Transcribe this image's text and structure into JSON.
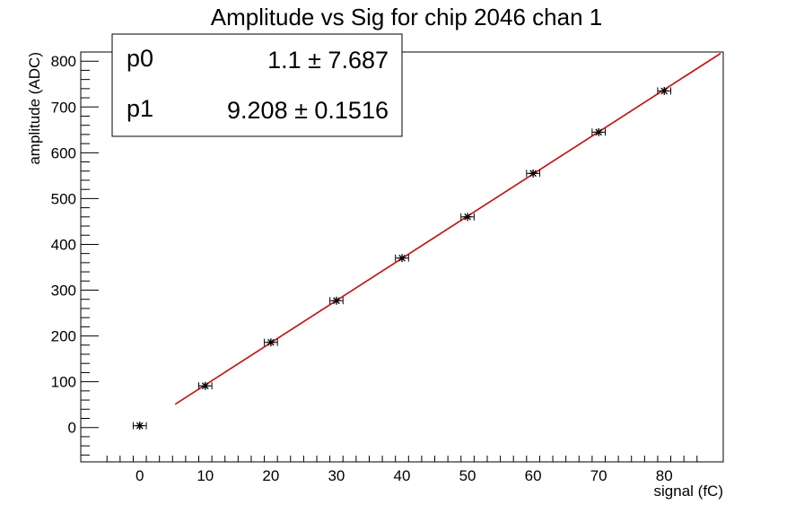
{
  "chart_data": {
    "type": "scatter",
    "title": "Amplitude vs Sig for chip 2046 chan 1",
    "xlabel": "signal (fC)",
    "ylabel": "amplitude (ADC)",
    "xlim": [
      -9,
      89
    ],
    "ylim": [
      -75,
      820
    ],
    "x_ticks": [
      0,
      10,
      20,
      30,
      40,
      50,
      60,
      70,
      80
    ],
    "y_ticks": [
      0,
      100,
      200,
      300,
      400,
      500,
      600,
      700,
      800
    ],
    "grid": false,
    "series": [
      {
        "marker": "star",
        "color": "#000000",
        "points": [
          {
            "x": 0,
            "y": 4,
            "xerr": 1.0,
            "yerr": 7
          },
          {
            "x": 10,
            "y": 91,
            "xerr": 1.0,
            "yerr": 3
          },
          {
            "x": 20,
            "y": 186,
            "xerr": 1.0,
            "yerr": 3
          },
          {
            "x": 30,
            "y": 277,
            "xerr": 1.0,
            "yerr": 3
          },
          {
            "x": 40,
            "y": 370,
            "xerr": 1.0,
            "yerr": 3
          },
          {
            "x": 50,
            "y": 460,
            "xerr": 1.0,
            "yerr": 3
          },
          {
            "x": 60,
            "y": 555,
            "xerr": 1.0,
            "yerr": 3
          },
          {
            "x": 70,
            "y": 645,
            "xerr": 1.0,
            "yerr": 3
          },
          {
            "x": 80,
            "y": 735,
            "xerr": 1.0,
            "yerr": 3
          }
        ]
      }
    ],
    "fit": {
      "type": "linear",
      "color": "#e00000",
      "p0": 1.1,
      "p1": 9.208,
      "x_range": [
        5.4,
        88.6
      ]
    },
    "stats_box": {
      "placement": "top-left",
      "rows": [
        {
          "name": "p0",
          "value": "1.1 ± 7.687"
        },
        {
          "name": "p1",
          "value": "9.208 ± 0.1516"
        }
      ]
    }
  }
}
